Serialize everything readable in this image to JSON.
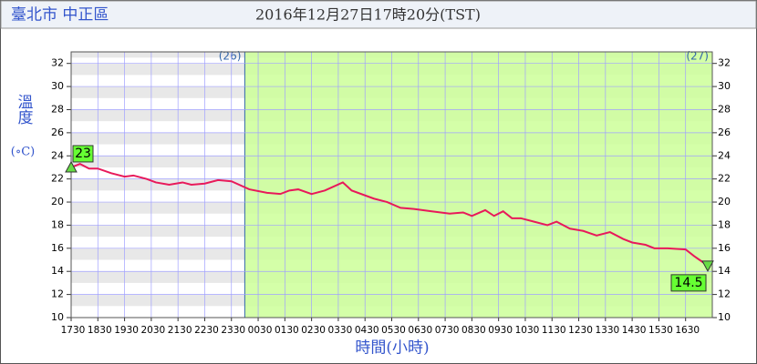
{
  "chart_data": {
    "type": "line",
    "location": "臺北市 中正區",
    "title": "2016年12月27日17時20分(TST)",
    "ylabel": "溫度",
    "yunit": "(∘C)",
    "xlabel": "時間(小時)",
    "day_labels": [
      {
        "label": "(26)",
        "x": 6.5
      },
      {
        "label": "(27)",
        "x": 24
      }
    ],
    "shaded_from": 6.5,
    "shade_color": "#ccff99",
    "x": [
      0,
      0.33,
      0.67,
      1,
      1.5,
      2,
      2.33,
      2.83,
      3.17,
      3.67,
      4.17,
      4.5,
      5,
      5.5,
      6,
      6.67,
      7.33,
      7.83,
      8.17,
      8.5,
      9,
      9.5,
      10.17,
      10.5,
      11.33,
      11.83,
      12.33,
      12.83,
      13.5,
      14.17,
      14.67,
      15,
      15.5,
      15.83,
      16.17,
      16.5,
      16.83,
      17.33,
      17.83,
      18.17,
      18.67,
      19.17,
      19.67,
      20.17,
      20.67,
      21,
      21.5,
      21.83,
      22.33,
      23,
      23.33,
      23.83
    ],
    "series": [
      {
        "name": "溫度",
        "color": "#e8195a",
        "values": [
          23,
          23.3,
          22.9,
          22.9,
          22.5,
          22.2,
          22.3,
          22,
          21.7,
          21.5,
          21.7,
          21.5,
          21.6,
          21.9,
          21.8,
          21.1,
          20.8,
          20.7,
          21,
          21.1,
          20.7,
          21,
          21.7,
          21,
          20.3,
          20,
          19.5,
          19.4,
          19.2,
          19,
          19.1,
          18.8,
          19.3,
          18.8,
          19.2,
          18.6,
          18.6,
          18.3,
          18,
          18.3,
          17.7,
          17.5,
          17.1,
          17.4,
          16.8,
          16.5,
          16.3,
          16,
          16,
          15.9,
          15.3,
          14.5
        ]
      }
    ],
    "annotations": [
      {
        "label": "23",
        "x": 0,
        "y": 23
      },
      {
        "label": "14.5",
        "x": 23.83,
        "y": 14.5
      }
    ],
    "xlim": [
      0,
      24
    ],
    "ylim": [
      10,
      33
    ],
    "xticks": [
      {
        "value": 0,
        "label": "1730"
      },
      {
        "value": 1,
        "label": "1830"
      },
      {
        "value": 2,
        "label": "1930"
      },
      {
        "value": 3,
        "label": "2030"
      },
      {
        "value": 4,
        "label": "2130"
      },
      {
        "value": 5,
        "label": "2230"
      },
      {
        "value": 6,
        "label": "2330"
      },
      {
        "value": 7,
        "label": "0030"
      },
      {
        "value": 8,
        "label": "0130"
      },
      {
        "value": 9,
        "label": "0230"
      },
      {
        "value": 10,
        "label": "0330"
      },
      {
        "value": 11,
        "label": "0430"
      },
      {
        "value": 12,
        "label": "0530"
      },
      {
        "value": 13,
        "label": "0630"
      },
      {
        "value": 14,
        "label": "0730"
      },
      {
        "value": 15,
        "label": "0830"
      },
      {
        "value": 16,
        "label": "0930"
      },
      {
        "value": 17,
        "label": "1030"
      },
      {
        "value": 18,
        "label": "1130"
      },
      {
        "value": 19,
        "label": "1230"
      },
      {
        "value": 20,
        "label": "1330"
      },
      {
        "value": 21,
        "label": "1430"
      },
      {
        "value": 22,
        "label": "1530"
      },
      {
        "value": 23,
        "label": "1630"
      }
    ],
    "yticks": [
      10,
      12,
      14,
      16,
      18,
      20,
      22,
      24,
      26,
      28,
      30,
      32
    ],
    "grid": true
  }
}
